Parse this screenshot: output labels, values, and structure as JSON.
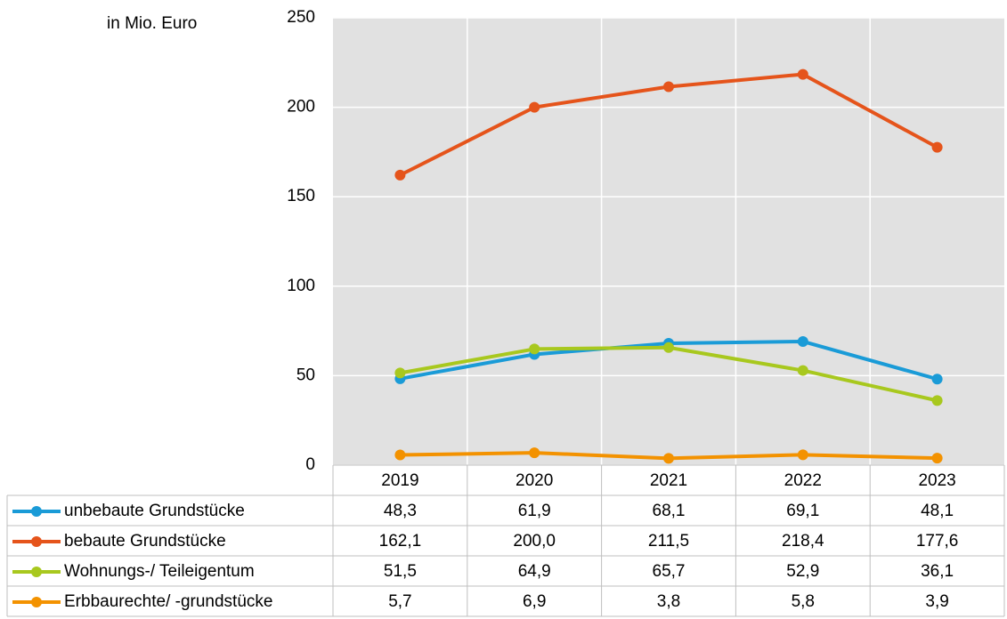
{
  "chart_data": {
    "type": "line",
    "unit_label": "in Mio. Euro",
    "categories": [
      "2019",
      "2020",
      "2021",
      "2022",
      "2023"
    ],
    "ylim": [
      0,
      250
    ],
    "yticks": [
      0,
      50,
      100,
      150,
      200,
      250
    ],
    "grid": true,
    "series": [
      {
        "name": "unbebaute Grundstücke",
        "color": "#1a9bd7",
        "values": [
          48.3,
          61.9,
          68.1,
          69.1,
          48.1
        ],
        "value_labels": [
          "48,3",
          "61,9",
          "68,1",
          "69,1",
          "48,1"
        ]
      },
      {
        "name": "bebaute Grundstücke",
        "color": "#e5541b",
        "values": [
          162.1,
          200.0,
          211.5,
          218.4,
          177.6
        ],
        "value_labels": [
          "162,1",
          "200,0",
          "211,5",
          "218,4",
          "177,6"
        ]
      },
      {
        "name": "Wohnungs-/ Teileigentum",
        "color": "#a8c81e",
        "values": [
          51.5,
          64.9,
          65.7,
          52.9,
          36.1
        ],
        "value_labels": [
          "51,5",
          "64,9",
          "65,7",
          "52,9",
          "36,1"
        ]
      },
      {
        "name": "Erbbaurechte/ -grundstücke",
        "color": "#f39200",
        "values": [
          5.7,
          6.9,
          3.8,
          5.8,
          3.9
        ],
        "value_labels": [
          "5,7",
          "6,9",
          "3,8",
          "5,8",
          "3,9"
        ]
      }
    ]
  }
}
